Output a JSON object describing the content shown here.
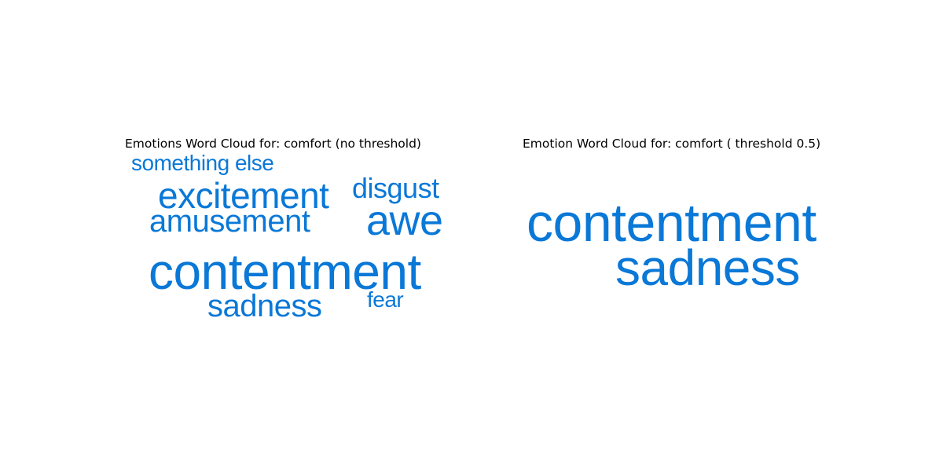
{
  "chart_data": [
    {
      "type": "wordcloud",
      "title": "Emotions Word Cloud for: comfort (no threshold)",
      "color": "#0a78d7",
      "words": [
        {
          "text": "something else",
          "weight": 0.27
        },
        {
          "text": "excitement",
          "weight": 0.42
        },
        {
          "text": "disgust",
          "weight": 0.35
        },
        {
          "text": "amusement",
          "weight": 0.37
        },
        {
          "text": "awe",
          "weight": 0.52
        },
        {
          "text": "contentment",
          "weight": 0.62
        },
        {
          "text": "sadness",
          "weight": 0.38
        },
        {
          "text": "fear",
          "weight": 0.27
        }
      ]
    },
    {
      "type": "wordcloud",
      "title": "Emotion Word Cloud for: comfort ( threshold 0.5)",
      "color": "#0a78d7",
      "words": [
        {
          "text": "contentment",
          "weight": 1.0
        },
        {
          "text": "sadness",
          "weight": 0.93
        }
      ]
    }
  ]
}
